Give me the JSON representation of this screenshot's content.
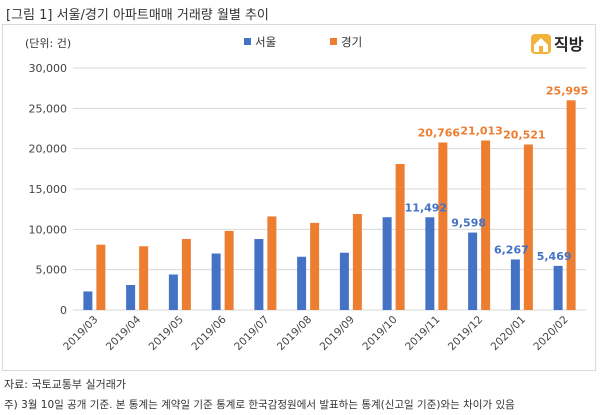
{
  "figure_title": "[그림 1] 서울/경기 아파트매매 거래량 월별 추이",
  "logo": {
    "text": "직방",
    "icon": "house-logo-icon"
  },
  "source": "자료: 국토교통부 실거래가",
  "note": "주) 3월 10일 공개 기준. 본 통계는 계약일 기준 통계로 한국감정원에서 발표하는 통계(신고일 기준)와는 차이가 있음",
  "colors": {
    "seoul": "#4472C4",
    "gyeonggi": "#ED7D31"
  },
  "chart_data": {
    "type": "bar",
    "unit_label": "(단위: 건)",
    "categories": [
      "2019/03",
      "2019/04",
      "2019/05",
      "2019/06",
      "2019/07",
      "2019/08",
      "2019/09",
      "2019/10",
      "2019/11",
      "2019/12",
      "2020/01",
      "2020/02"
    ],
    "series": [
      {
        "name": "서울",
        "values": [
          2300,
          3100,
          4400,
          7000,
          8800,
          6600,
          7100,
          11500,
          11492,
          9598,
          6267,
          5469
        ]
      },
      {
        "name": "경기",
        "values": [
          8100,
          7900,
          8800,
          9800,
          11600,
          10800,
          11900,
          18100,
          20766,
          21013,
          20521,
          25995
        ]
      }
    ],
    "data_labels": [
      {
        "series": 0,
        "index": 8,
        "text": "11,492"
      },
      {
        "series": 0,
        "index": 9,
        "text": "9,598"
      },
      {
        "series": 0,
        "index": 10,
        "text": "6,267"
      },
      {
        "series": 0,
        "index": 11,
        "text": "5,469"
      },
      {
        "series": 1,
        "index": 8,
        "text": "20,766"
      },
      {
        "series": 1,
        "index": 9,
        "text": "21,013"
      },
      {
        "series": 1,
        "index": 10,
        "text": "20,521"
      },
      {
        "series": 1,
        "index": 11,
        "text": "25,995"
      }
    ],
    "ylim": [
      0,
      30000
    ],
    "yticks": [
      0,
      5000,
      10000,
      15000,
      20000,
      25000,
      30000
    ],
    "ytick_labels": [
      "0",
      "5,000",
      "10,000",
      "15,000",
      "20,000",
      "25,000",
      "30,000"
    ],
    "grid": true,
    "legend_position": "top-center"
  }
}
